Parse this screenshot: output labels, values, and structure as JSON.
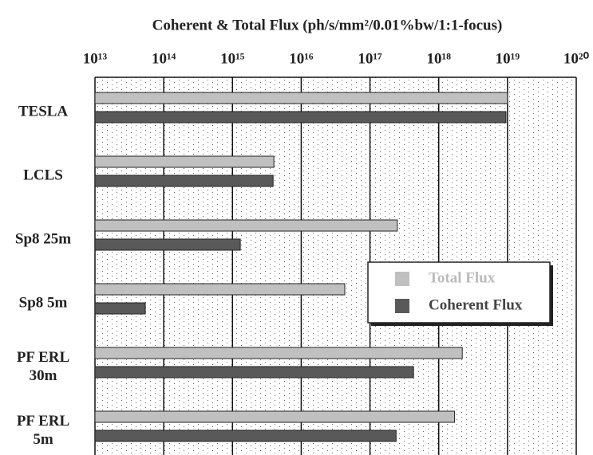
{
  "chart_data": {
    "type": "barh",
    "title": "Coherent & Total Flux (ph/s/mm²/0.01%bw/1:1-focus)",
    "categories": [
      "TESLA",
      "LCLS",
      "Sp8 25m",
      "Sp8 5m",
      "PF ERL 30m",
      "PF ERL 5m"
    ],
    "series": [
      {
        "name": "Total Flux",
        "color": "#c0c0c0",
        "values": [
          1e+19,
          4000000000000000.0,
          2.5e+17,
          4.3e+16,
          2.2e+18,
          1.7e+18
        ]
      },
      {
        "name": "Coherent Flux",
        "color": "#595959",
        "values": [
          9.5e+18,
          3900000000000000.0,
          1300000000000000.0,
          54000000000000.0,
          4.3e+17,
          2.4e+17
        ]
      }
    ],
    "xscale": "log",
    "xlim": [
      10000000000000.0,
      1e+20
    ],
    "xticks": [
      {
        "value": 10000000000000.0,
        "label": "10¹³"
      },
      {
        "value": 100000000000000.0,
        "label": "10¹⁴"
      },
      {
        "value": 1000000000000000.0,
        "label": "10¹⁵"
      },
      {
        "value": 1e+16,
        "label": "10¹⁶"
      },
      {
        "value": 1e+17,
        "label": "10¹⁷"
      },
      {
        "value": 1e+18,
        "label": "10¹⁸"
      },
      {
        "value": 1e+19,
        "label": "10¹⁹"
      },
      {
        "value": 1e+20,
        "label": "10²⁰"
      }
    ],
    "grid": true,
    "legend": "center right"
  }
}
